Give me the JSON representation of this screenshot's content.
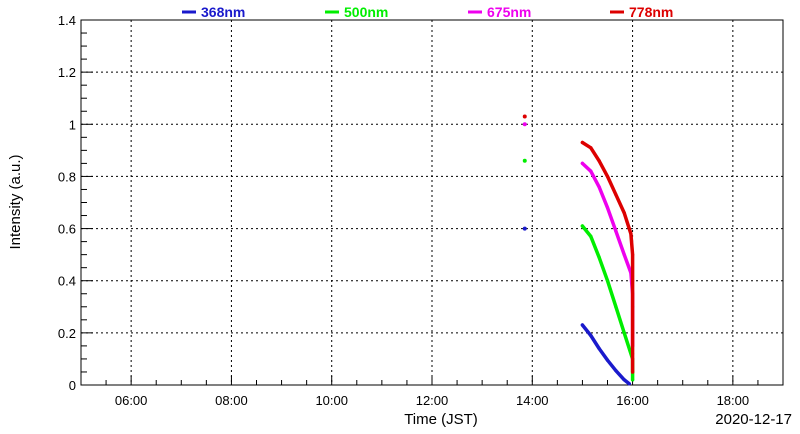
{
  "chart_data": {
    "type": "scatter",
    "title": "",
    "xlabel": "Time (JST)",
    "ylabel": "Intensity (a.u.)",
    "date_label": "2020-12-17",
    "x_unit": "time of day (JST)",
    "xlim": [
      "05:00",
      "19:00"
    ],
    "ylim": [
      0,
      1.4
    ],
    "x_ticks": [
      "06:00",
      "08:00",
      "10:00",
      "12:00",
      "14:00",
      "16:00",
      "18:00"
    ],
    "y_ticks": [
      "0",
      "0.2",
      "0.4",
      "0.6",
      "0.8",
      "1",
      "1.2",
      "1.4"
    ],
    "grid": true,
    "legend_position": "top",
    "series": [
      {
        "name": "368nm",
        "color": "#1a1acc",
        "points": [
          [
            "13:51",
            0.6
          ],
          [
            "15:00",
            0.23
          ],
          [
            "15:10",
            0.19
          ],
          [
            "15:20",
            0.14
          ],
          [
            "15:30",
            0.095
          ],
          [
            "15:40",
            0.055
          ],
          [
            "15:50",
            0.02
          ],
          [
            "15:56",
            0.005
          ]
        ]
      },
      {
        "name": "500nm",
        "color": "#00ee00",
        "points": [
          [
            "13:51",
            0.86
          ],
          [
            "15:00",
            0.61
          ],
          [
            "15:10",
            0.57
          ],
          [
            "15:20",
            0.49
          ],
          [
            "15:30",
            0.4
          ],
          [
            "15:40",
            0.3
          ],
          [
            "15:50",
            0.2
          ],
          [
            "16:00",
            0.1
          ],
          [
            "16:00",
            0.06
          ],
          [
            "16:00",
            0.02
          ]
        ]
      },
      {
        "name": "675nm",
        "color": "#ee00ee",
        "points": [
          [
            "13:51",
            1.0
          ],
          [
            "15:00",
            0.85
          ],
          [
            "15:10",
            0.82
          ],
          [
            "15:20",
            0.76
          ],
          [
            "15:30",
            0.68
          ],
          [
            "15:40",
            0.59
          ],
          [
            "15:50",
            0.5
          ],
          [
            "15:58",
            0.43
          ],
          [
            "16:00",
            0.35
          ],
          [
            "16:00",
            0.25
          ],
          [
            "16:00",
            0.15
          ]
        ]
      },
      {
        "name": "778nm",
        "color": "#dd0000",
        "points": [
          [
            "13:51",
            1.03
          ],
          [
            "15:00",
            0.93
          ],
          [
            "15:10",
            0.91
          ],
          [
            "15:20",
            0.86
          ],
          [
            "15:30",
            0.8
          ],
          [
            "15:40",
            0.73
          ],
          [
            "15:50",
            0.66
          ],
          [
            "15:58",
            0.58
          ],
          [
            "16:00",
            0.5
          ],
          [
            "16:00",
            0.4
          ],
          [
            "16:00",
            0.3
          ],
          [
            "16:00",
            0.2
          ],
          [
            "16:00",
            0.12
          ],
          [
            "16:00",
            0.05
          ]
        ]
      }
    ]
  }
}
